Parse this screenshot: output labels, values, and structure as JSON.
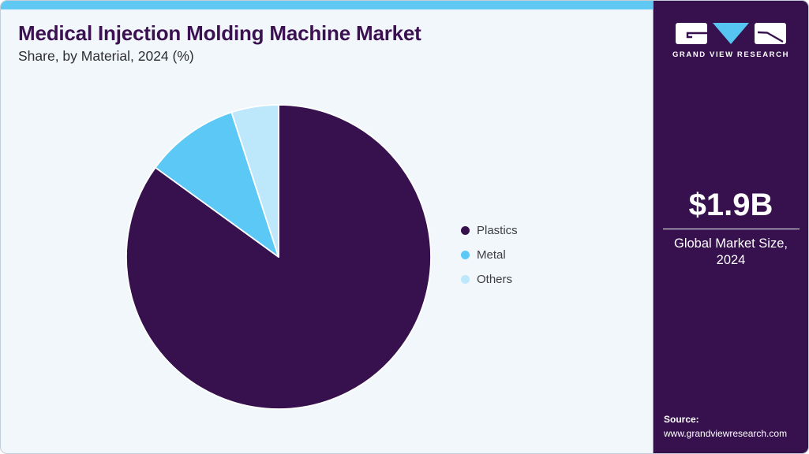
{
  "header": {
    "title": "Medical Injection Molding Machine Market",
    "subtitle": "Share, by Material, 2024 (%)"
  },
  "chart_data": {
    "type": "pie",
    "title": "Medical Injection Molding Machine Market Share, by Material, 2024 (%)",
    "categories": [
      "Plastics",
      "Metal",
      "Others"
    ],
    "values": [
      85,
      10,
      5
    ],
    "unit": "%",
    "colors": [
      "#36114D",
      "#5BC8F5",
      "#BDE7FA"
    ],
    "start_angle_deg": 0,
    "direction": "clockwise",
    "legend_position": "right-middle",
    "slice_separator_color": "#ffffff"
  },
  "sidebar": {
    "logo_text": "GRAND VIEW RESEARCH",
    "market_size_value": "$1.9B",
    "market_size_label": "Global Market Size, 2024",
    "source_label": "Source:",
    "source_url": "www.grandviewresearch.com"
  },
  "theme": {
    "accent_blue": "#5FC9F3",
    "brand_purple": "#36114D",
    "light_blue": "#BDE7FA",
    "panel_bg": "#F2F7FB",
    "title_color": "#3B1152"
  }
}
